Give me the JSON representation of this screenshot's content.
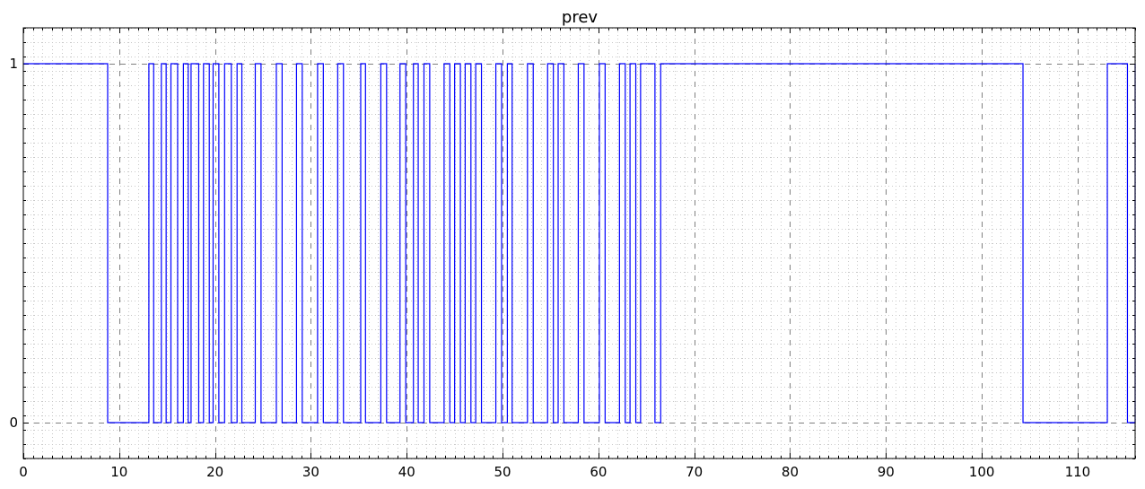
{
  "chart_data": {
    "type": "line",
    "title": "prev",
    "xlabel": "",
    "ylabel": "",
    "xlim": [
      0,
      116
    ],
    "ylim": [
      -0.1,
      1.1
    ],
    "x_major_ticks": [
      0,
      10,
      20,
      30,
      40,
      50,
      60,
      70,
      80,
      90,
      100,
      110
    ],
    "x_minor_step": 1,
    "y_major_ticks": [
      0,
      1
    ],
    "y_minor_step": 0.04,
    "grid": true,
    "step": "post",
    "line_color": "#0000ff",
    "grid_color": "#808080",
    "series": [
      {
        "x": [
          0,
          8.8,
          13.1,
          13.6,
          14.4,
          14.9,
          15.4,
          16.1,
          16.7,
          17.2,
          17.5,
          18.3,
          18.8,
          19.4,
          19.8,
          20.4,
          21.0,
          21.7,
          22.3,
          22.8,
          24.2,
          24.8,
          26.4,
          27.0,
          28.5,
          29.1,
          30.7,
          31.3,
          32.8,
          33.4,
          35.2,
          35.7,
          37.3,
          37.9,
          39.3,
          39.9,
          40.7,
          41.2,
          41.8,
          42.4,
          43.9,
          44.5,
          45.0,
          45.6,
          46.1,
          46.7,
          47.2,
          47.8,
          49.3,
          49.9,
          50.5,
          51.0,
          52.6,
          53.2,
          54.7,
          55.3,
          55.8,
          56.4,
          57.9,
          58.5,
          60.1,
          60.7,
          62.2,
          62.8,
          63.3,
          63.9,
          64.4,
          65.9,
          66.5,
          104.3,
          113.1,
          115.2,
          116
        ]
      }
    ],
    "y_values": [
      1,
      0,
      1,
      0,
      1,
      0,
      1,
      0,
      1,
      0,
      1,
      0,
      1,
      0,
      1,
      0,
      1,
      0,
      1,
      0,
      1,
      0,
      1,
      0,
      1,
      0,
      1,
      0,
      1,
      0,
      1,
      0,
      1,
      0,
      1,
      0,
      1,
      0,
      1,
      0,
      1,
      0,
      1,
      0,
      1,
      0,
      1,
      0,
      1,
      0,
      1,
      0,
      1,
      0,
      1,
      0,
      1,
      0,
      1,
      0,
      1,
      0,
      1,
      0,
      1,
      0,
      1,
      0,
      1,
      0,
      1,
      0,
      1
    ]
  }
}
